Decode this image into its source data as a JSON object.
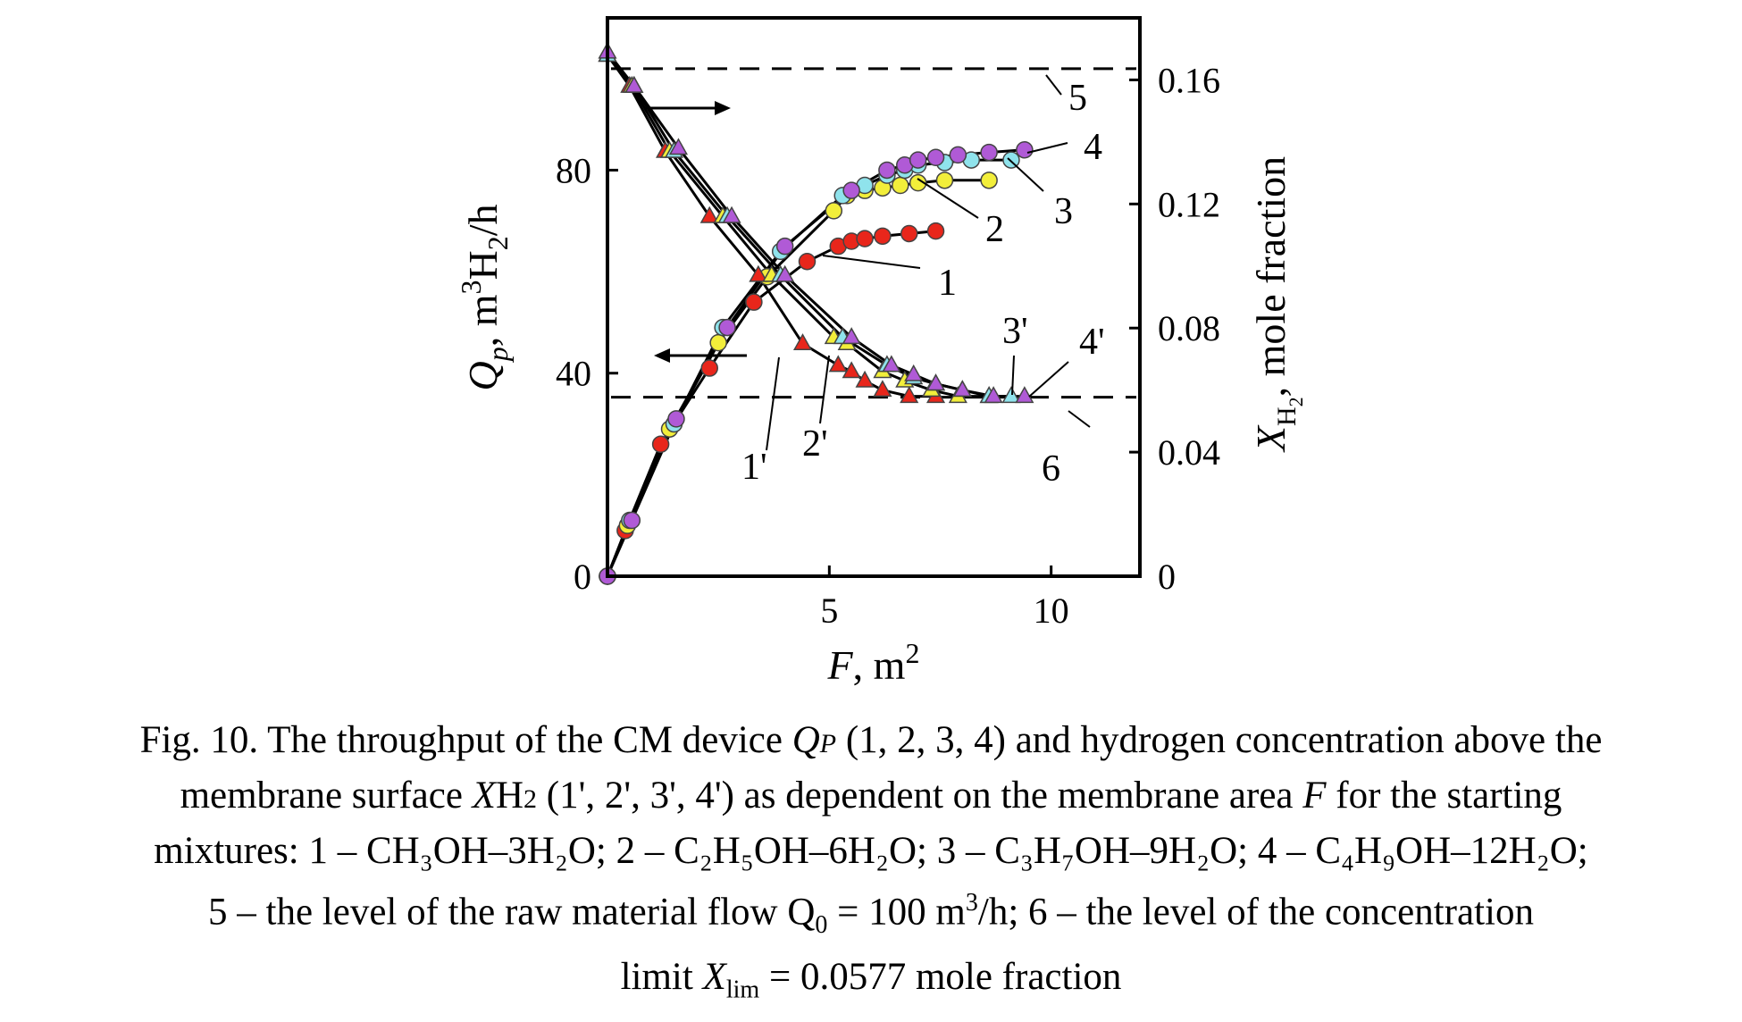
{
  "chart_data": {
    "type": "scatter",
    "title": "",
    "xlabel": "F, m2",
    "ylabel_left": "Qp, m3H2/h",
    "ylabel_right": "XH2, mole fraction",
    "xlim": [
      0,
      12
    ],
    "ylim_left": [
      0,
      110
    ],
    "ylim_right": [
      0,
      0.18
    ],
    "x_ticks": [
      "5",
      "10"
    ],
    "x_tick_values": [
      5,
      10
    ],
    "y_left_ticks": [
      "0",
      "40",
      "80"
    ],
    "y_left_tick_values": [
      0,
      40,
      80
    ],
    "y_right_ticks": [
      "0",
      "0.04",
      "0.08",
      "0.12",
      "0.16"
    ],
    "y_right_tick_values": [
      0,
      0.04,
      0.08,
      0.12,
      0.16
    ],
    "grid": false,
    "series": [
      {
        "id": "1",
        "axis": "left",
        "marker": "circle",
        "color": "#e8261b",
        "x": [
          0,
          0.4,
          1.2,
          2.3,
          3.3,
          4.5,
          5.2,
          5.5,
          5.8,
          6.2,
          6.8,
          7.4
        ],
        "y": [
          0,
          9,
          26,
          41,
          54,
          62,
          65,
          66,
          66.5,
          67,
          67.5,
          68
        ]
      },
      {
        "id": "2",
        "axis": "left",
        "marker": "circle",
        "color": "#f2ee3a",
        "x": [
          0,
          0.45,
          1.4,
          2.5,
          3.6,
          5.1,
          5.4,
          5.8,
          6.2,
          6.6,
          7.0,
          7.6,
          8.6
        ],
        "y": [
          0,
          10,
          29,
          46,
          59,
          72,
          75,
          76,
          76.5,
          77,
          77.5,
          78,
          78
        ]
      },
      {
        "id": "3",
        "axis": "left",
        "marker": "circle",
        "color": "#8fe3ec",
        "x": [
          0,
          0.5,
          1.5,
          2.6,
          3.9,
          5.3,
          5.8,
          6.3,
          6.7,
          7.0,
          7.6,
          8.2,
          9.1
        ],
        "y": [
          0,
          11,
          30,
          49,
          64,
          75,
          77,
          79,
          80,
          81,
          81.5,
          82,
          82
        ]
      },
      {
        "id": "4",
        "axis": "left",
        "marker": "circle",
        "color": "#b05ad6",
        "x": [
          0,
          0.55,
          1.55,
          2.7,
          4.0,
          5.5,
          6.3,
          6.7,
          7.0,
          7.4,
          7.9,
          8.6,
          9.4
        ],
        "y": [
          0,
          11,
          31,
          49,
          65,
          76,
          80,
          81,
          82,
          82.5,
          83,
          83.5,
          84
        ]
      },
      {
        "id": "1'",
        "axis": "right",
        "marker": "triangle",
        "color": "#e8261b",
        "x": [
          0,
          0.5,
          1.3,
          2.3,
          3.4,
          4.4,
          5.2,
          5.5,
          5.8,
          6.2,
          6.8,
          7.4
        ],
        "y": [
          0.168,
          0.158,
          0.137,
          0.116,
          0.097,
          0.075,
          0.068,
          0.066,
          0.063,
          0.06,
          0.058,
          0.058
        ]
      },
      {
        "id": "2'",
        "axis": "right",
        "marker": "triangle",
        "color": "#f2ee3a",
        "x": [
          0,
          0.55,
          1.4,
          2.6,
          3.7,
          5.1,
          5.4,
          6.2,
          6.7,
          7.3,
          7.9,
          8.6
        ],
        "y": [
          0.168,
          0.158,
          0.137,
          0.116,
          0.097,
          0.077,
          0.075,
          0.066,
          0.063,
          0.06,
          0.058,
          0.058
        ]
      },
      {
        "id": "3'",
        "axis": "right",
        "marker": "triangle",
        "color": "#8fe3ec",
        "x": [
          0,
          0.6,
          1.5,
          2.7,
          3.9,
          5.3,
          6.3,
          6.9,
          7.4,
          8.0,
          8.6,
          9.1
        ],
        "y": [
          0.168,
          0.158,
          0.137,
          0.116,
          0.097,
          0.077,
          0.068,
          0.064,
          0.062,
          0.06,
          0.058,
          0.058
        ]
      },
      {
        "id": "4'",
        "axis": "right",
        "marker": "triangle",
        "color": "#b05ad6",
        "x": [
          0,
          0.6,
          1.6,
          2.8,
          4.0,
          5.5,
          6.4,
          6.9,
          7.4,
          8.0,
          8.7,
          9.4
        ],
        "y": [
          0.169,
          0.158,
          0.138,
          0.116,
          0.097,
          0.077,
          0.068,
          0.065,
          0.062,
          0.06,
          0.058,
          0.058
        ]
      }
    ],
    "reference_lines": [
      {
        "id": "5",
        "axis": "left",
        "value": 100
      },
      {
        "id": "6",
        "axis": "right",
        "value": 0.0577
      }
    ],
    "curve_labels": [
      "1",
      "2",
      "3",
      "4",
      "1'",
      "2'",
      "3'",
      "4'",
      "5",
      "6"
    ]
  },
  "caption": {
    "line1_a": "Fig. 10. The throughput of the CM device ",
    "line1_q": "Q",
    "line1_p": "P",
    "line1_b": " (1, 2, 3, 4) and hydrogen concentration above the",
    "line2_a": "membrane surface ",
    "line2_x": "X",
    "line2_h": "H",
    "line2_2": "2",
    "line2_b": " (1', 2', 3', 4') as dependent on the membrane area ",
    "line2_f": "F",
    "line2_c": " for the starting",
    "line3": "mixtures: 1 – CH₃OH–3H₂O; 2 – C₂H₅OH–6H₂O; 3 – C₃H₇OH–9H₂O; 4 – C₄H₉OH–12H₂O;",
    "line4_a": "5 – the level of the raw material flow Q",
    "line4_0": "0",
    "line4_b": " = 100 m",
    "line4_3": "3",
    "line4_c": "/h; 6 – the level of the concentration",
    "line5_a": "limit ",
    "line5_x": "X",
    "line5_lim": "lim",
    "line5_b": " = 0.0577 mole fraction"
  }
}
